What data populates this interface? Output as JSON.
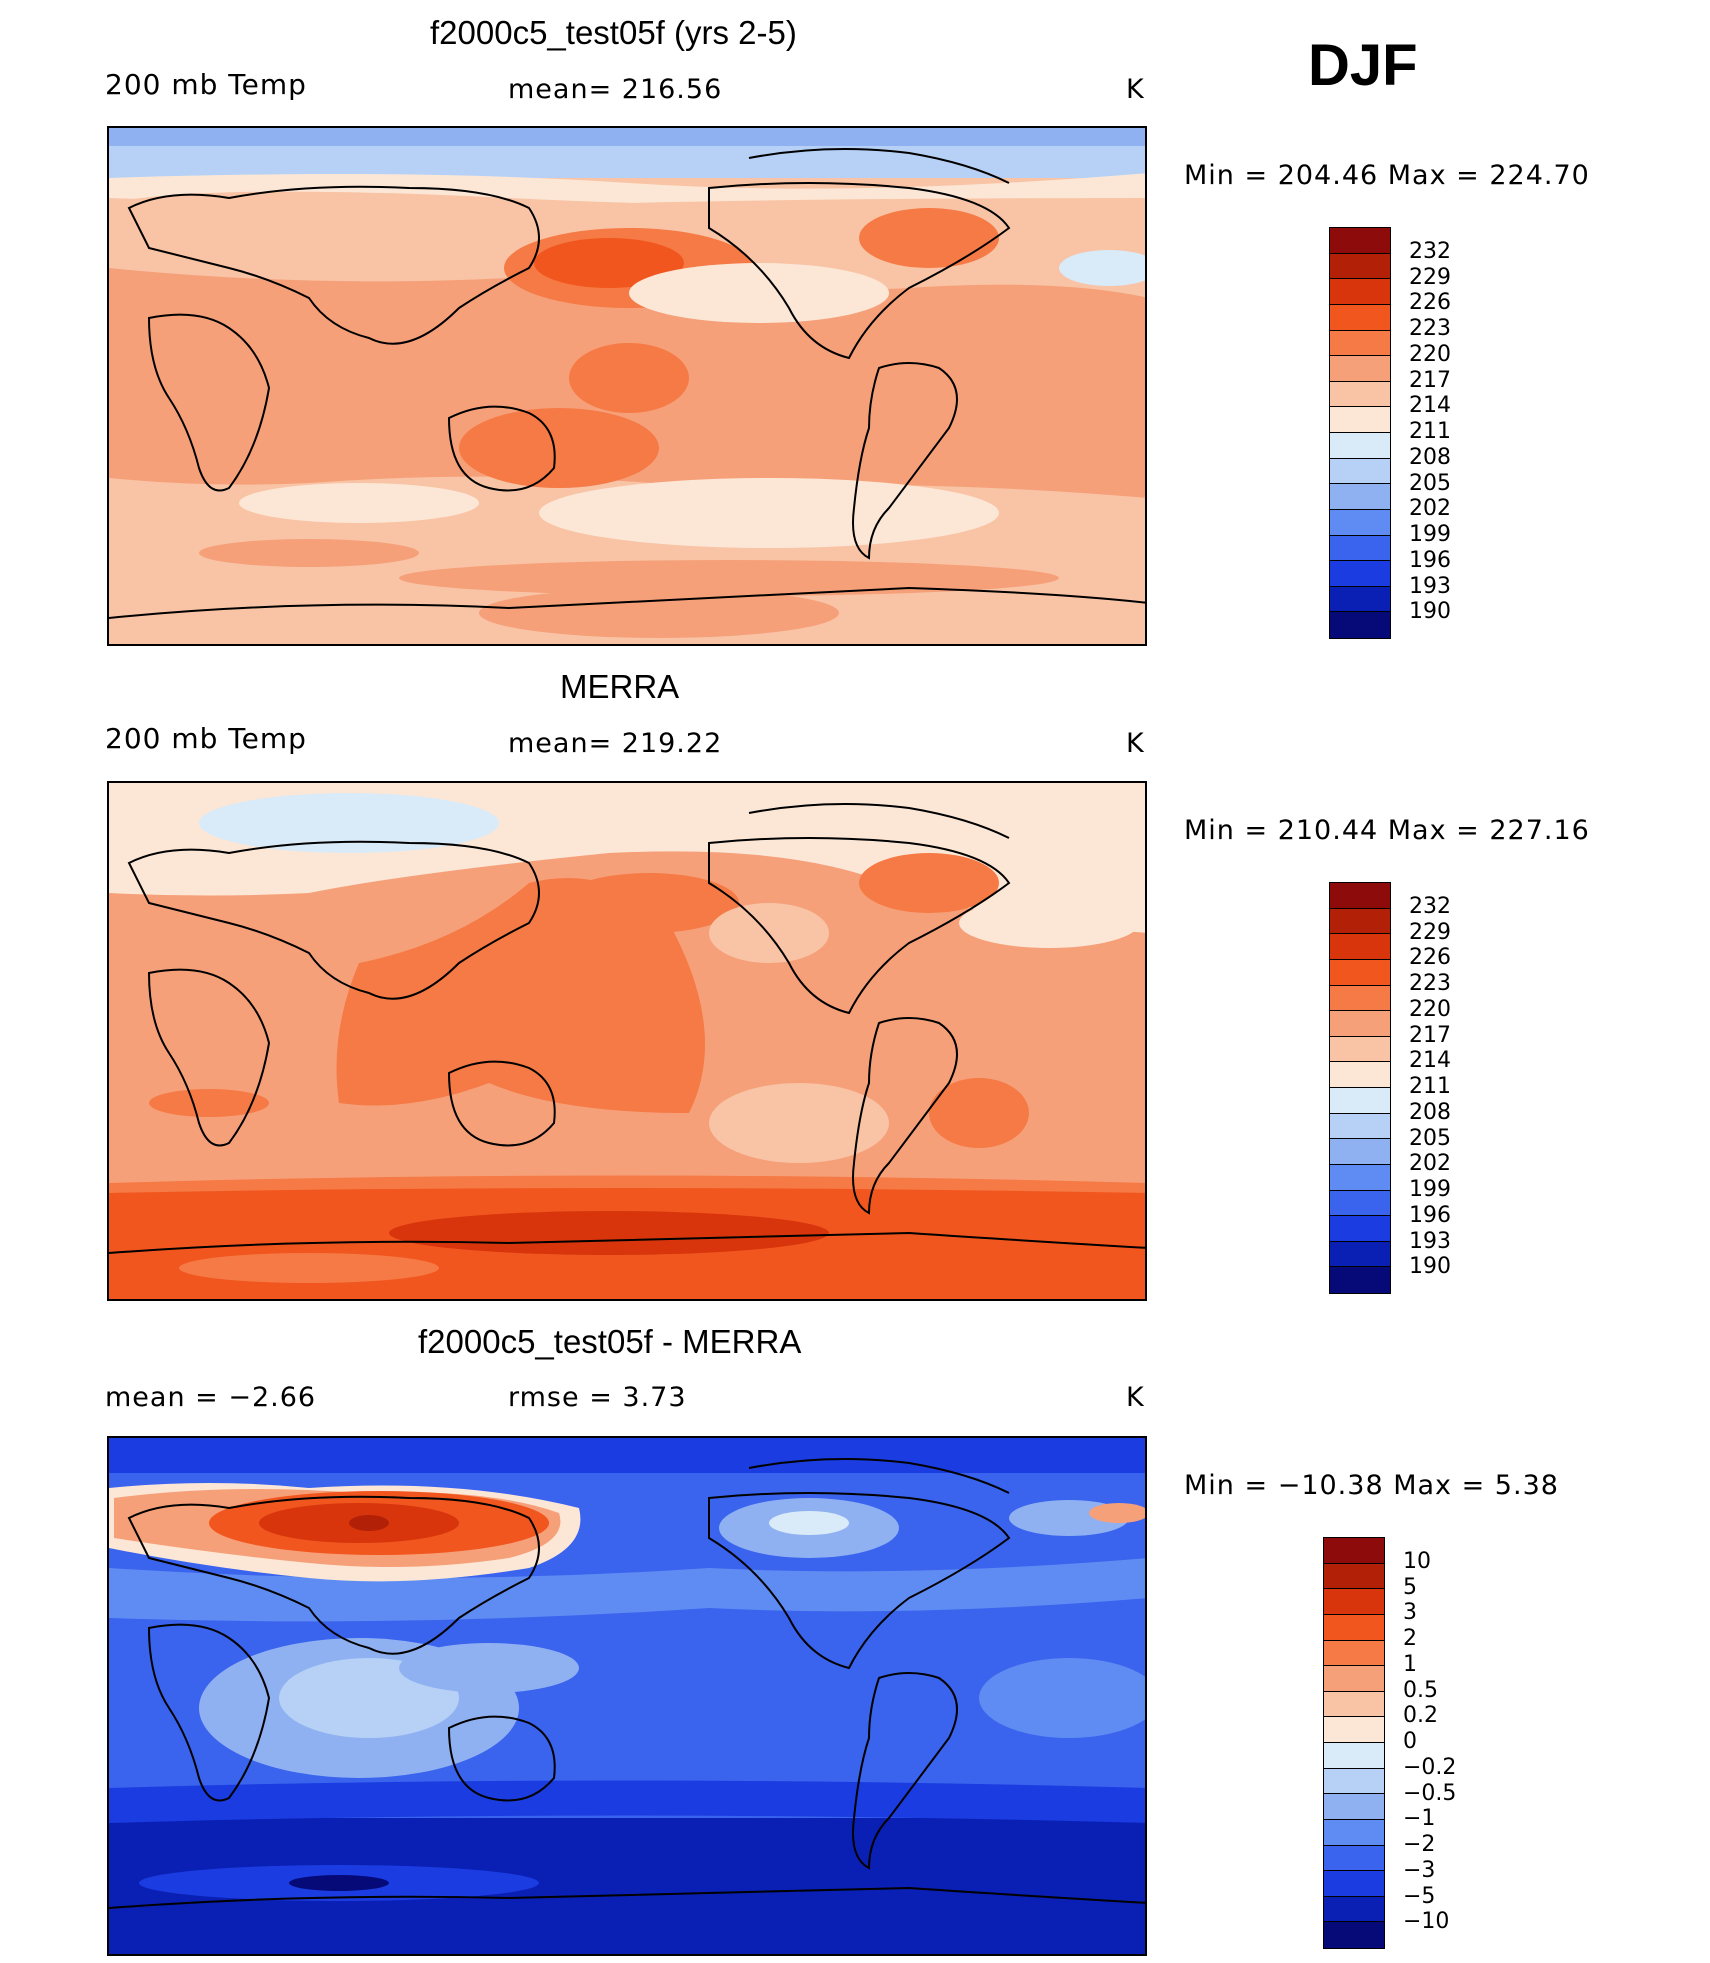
{
  "season": "DJF",
  "panels": [
    {
      "title": "f2000c5_test05f (yrs 2-5)",
      "left_label": "200 mb Temp",
      "center_label": "mean=  216.56",
      "units": "K",
      "range_text": "Min  =  204.46  Max  =  224.70"
    },
    {
      "title": "MERRA",
      "left_label": "200 mb Temp",
      "center_label": "mean=  219.22",
      "units": "K",
      "range_text": "Min  =  210.44  Max  =  227.16"
    },
    {
      "title": "f2000c5_test05f - MERRA",
      "left_label": "mean  =    −2.66",
      "center_label": "rmse  =     3.73",
      "units": "K",
      "range_text": "Min  =  −10.38  Max  =      5.38"
    }
  ],
  "colorbars": {
    "temperature": {
      "labels": [
        "232",
        "229",
        "226",
        "223",
        "220",
        "217",
        "214",
        "211",
        "208",
        "205",
        "202",
        "199",
        "196",
        "193",
        "190"
      ],
      "colors": [
        "#8e0b0b",
        "#b32008",
        "#d8350c",
        "#f2561f",
        "#f57a45",
        "#f6a07a",
        "#f8c4a5",
        "#fce7d6",
        "#d9eaf8",
        "#b6d1f5",
        "#8fb1f2",
        "#5f8cf2",
        "#3a63ee",
        "#1a3ce0",
        "#0a1fb4",
        "#050a78"
      ]
    },
    "difference": {
      "labels": [
        "10",
        "5",
        "3",
        "2",
        "1",
        "0.5",
        "0.2",
        "0",
        "−0.2",
        "−0.5",
        "−1",
        "−2",
        "−3",
        "−5",
        "−10"
      ],
      "colors": [
        "#8e0b0b",
        "#b32008",
        "#d8350c",
        "#f2561f",
        "#f57a45",
        "#f6a07a",
        "#f8c4a5",
        "#fce7d6",
        "#d9eaf8",
        "#b6d1f5",
        "#8fb1f2",
        "#5f8cf2",
        "#3a63ee",
        "#1a3ce0",
        "#0a1fb4",
        "#050a78"
      ]
    }
  }
}
